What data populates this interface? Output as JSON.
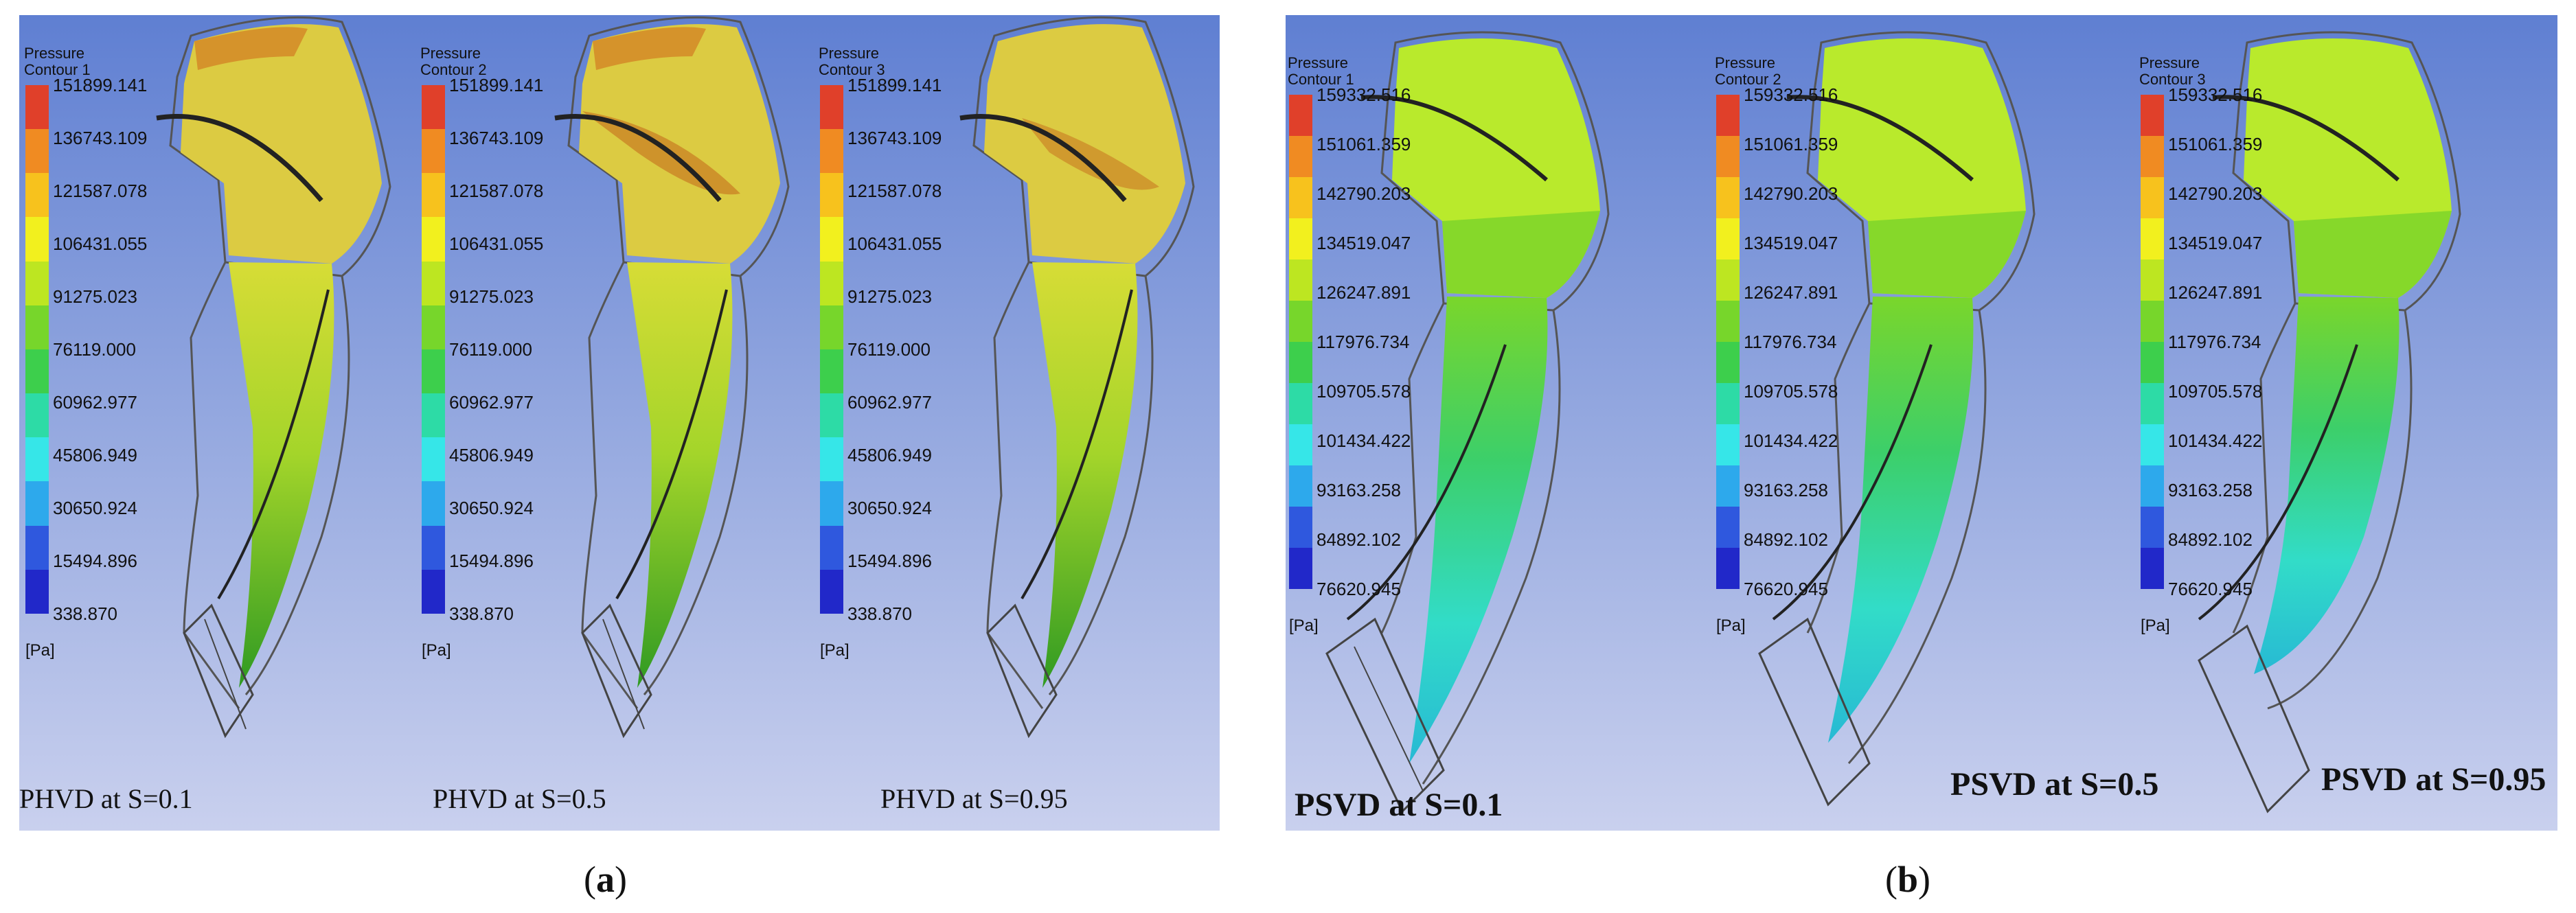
{
  "panels": {
    "a": {
      "sublabel_open": "(",
      "sublabel_letter": "a",
      "sublabel_close": ")",
      "colorbars": [
        {
          "title": "Pressure\nContour 1"
        },
        {
          "title": "Pressure\nContour 2"
        },
        {
          "title": "Pressure\nContour 3"
        }
      ],
      "levels": [
        "151899.141",
        "136743.109",
        "121587.078",
        "106431.055",
        "91275.023",
        "76119.000",
        "60962.977",
        "45806.949",
        "30650.924",
        "15494.896",
        "338.870"
      ],
      "unit": "[Pa]",
      "cases": [
        "PHVD at S=0.1",
        "PHVD at S=0.5",
        "PHVD at S=0.95"
      ]
    },
    "b": {
      "sublabel_open": "(",
      "sublabel_letter": "b",
      "sublabel_close": ")",
      "colorbars": [
        {
          "title": "Pressure\nContour 1"
        },
        {
          "title": "Pressure\nContour 2"
        },
        {
          "title": "Pressure\nContour 3"
        }
      ],
      "levels": [
        "159332.516",
        "151061.359",
        "142790.203",
        "134519.047",
        "126247.891",
        "117976.734",
        "109705.578",
        "101434.422",
        "93163.258",
        "84892.102",
        "76620.945"
      ],
      "unit": "[Pa]",
      "cases": [
        "PSVD at S=0.1",
        "PSVD at S=0.5",
        "PSVD at S=0.95"
      ]
    }
  },
  "colors": {
    "scale": [
      "#e0402a",
      "#f08b22",
      "#f7c21d",
      "#f2f01e",
      "#bde621",
      "#77d62b",
      "#3dcf4c",
      "#2ddba6",
      "#36e6e8",
      "#2da9ec",
      "#2f58de",
      "#2128c9"
    ],
    "blade_a": "#d9c83a",
    "blade_b": "#b9ea2c"
  }
}
